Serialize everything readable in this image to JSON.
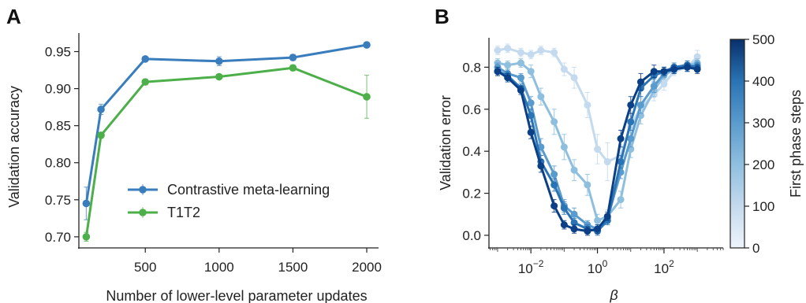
{
  "chart_data": [
    {
      "panel": "A",
      "type": "line",
      "xlabel": "Number of lower-level parameter updates",
      "ylabel": "Validation accuracy",
      "xticks": [
        500,
        1000,
        1500,
        2000
      ],
      "yticks": [
        "0.70",
        "0.75",
        "0.80",
        "0.85",
        "0.90",
        "0.95"
      ],
      "xlim": [
        50,
        2080
      ],
      "ylim": [
        0.685,
        0.975
      ],
      "legend": "center-right",
      "series": [
        {
          "name": "Contrastive meta-learning",
          "color": "#3a7dbd",
          "x": [
            100,
            200,
            500,
            1000,
            1500,
            2000
          ],
          "y": [
            0.745,
            0.872,
            0.94,
            0.937,
            0.942,
            0.959
          ],
          "err": [
            0.022,
            0.007,
            0.003,
            0.006,
            0.004,
            0.003
          ]
        },
        {
          "name": "T1T2",
          "color": "#4daf4a",
          "x": [
            100,
            200,
            500,
            1000,
            1500,
            2000
          ],
          "y": [
            0.7,
            0.837,
            0.909,
            0.916,
            0.928,
            0.889
          ],
          "err": [
            0.006,
            0.004,
            0.004,
            0.003,
            0.004,
            0.029
          ]
        }
      ]
    },
    {
      "panel": "B",
      "type": "line",
      "xlabel": "β",
      "ylabel": "Validation error",
      "xscale": "log",
      "xticks": [
        {
          "base": "10",
          "exp": "−2",
          "value": 0.01
        },
        {
          "base": "10",
          "exp": "0",
          "value": 1
        },
        {
          "base": "10",
          "exp": "2",
          "value": 100
        }
      ],
      "yticks": [
        "0.0",
        "0.2",
        "0.4",
        "0.6",
        "0.8"
      ],
      "xlim": [
        0.00055,
        6000
      ],
      "ylim": [
        -0.06,
        0.94
      ],
      "beta": [
        0.001,
        0.002,
        0.005,
        0.01,
        0.02,
        0.05,
        0.1,
        0.2,
        0.5,
        1,
        2,
        5,
        10,
        20,
        50,
        100,
        200,
        500,
        1000
      ],
      "colorbar": {
        "label": "First phase steps",
        "ticks": [
          "0",
          "100",
          "200",
          "300",
          "400",
          "500"
        ],
        "min": 0,
        "max": 500
      },
      "series": [
        {
          "name": "100",
          "color": "#c4daee",
          "y": [
            0.88,
            0.89,
            0.87,
            0.86,
            0.88,
            0.87,
            0.79,
            0.75,
            0.62,
            0.41,
            0.35,
            0.38,
            0.52,
            0.61,
            0.67,
            0.72,
            0.78,
            0.8,
            0.85
          ],
          "err": [
            0.02,
            0.02,
            0.02,
            0.02,
            0.02,
            0.02,
            0.03,
            0.05,
            0.06,
            0.07,
            0.09,
            0.05,
            0.05,
            0.04,
            0.03,
            0.03,
            0.02,
            0.02,
            0.03
          ]
        },
        {
          "name": "200",
          "color": "#8fbfdf",
          "y": [
            0.82,
            0.81,
            0.82,
            0.78,
            0.66,
            0.54,
            0.42,
            0.31,
            0.24,
            0.07,
            0.09,
            0.17,
            0.41,
            0.57,
            0.69,
            0.76,
            0.79,
            0.81,
            0.82
          ],
          "err": [
            0.02,
            0.02,
            0.02,
            0.03,
            0.04,
            0.06,
            0.06,
            0.05,
            0.05,
            0.03,
            0.03,
            0.04,
            0.04,
            0.04,
            0.03,
            0.02,
            0.02,
            0.02,
            0.02
          ]
        },
        {
          "name": "300",
          "color": "#5a9bcd",
          "y": [
            0.8,
            0.77,
            0.75,
            0.63,
            0.42,
            0.29,
            0.14,
            0.1,
            0.05,
            0.03,
            0.08,
            0.3,
            0.46,
            0.62,
            0.71,
            0.77,
            0.79,
            0.8,
            0.81
          ],
          "err": [
            0.02,
            0.02,
            0.02,
            0.03,
            0.04,
            0.04,
            0.03,
            0.03,
            0.02,
            0.02,
            0.02,
            0.03,
            0.04,
            0.04,
            0.03,
            0.02,
            0.02,
            0.02,
            0.02
          ]
        },
        {
          "name": "400",
          "color": "#2a73b4",
          "y": [
            0.78,
            0.76,
            0.7,
            0.57,
            0.35,
            0.24,
            0.13,
            0.06,
            0.03,
            0.02,
            0.07,
            0.35,
            0.54,
            0.7,
            0.76,
            0.78,
            0.8,
            0.81,
            0.8
          ],
          "err": [
            0.02,
            0.02,
            0.02,
            0.03,
            0.03,
            0.03,
            0.03,
            0.02,
            0.02,
            0.02,
            0.02,
            0.03,
            0.04,
            0.04,
            0.03,
            0.02,
            0.02,
            0.02,
            0.02
          ]
        },
        {
          "name": "500",
          "color": "#0b3f86",
          "y": [
            0.78,
            0.75,
            0.69,
            0.49,
            0.33,
            0.14,
            0.05,
            0.03,
            0.02,
            0.03,
            0.09,
            0.46,
            0.62,
            0.73,
            0.78,
            0.78,
            0.79,
            0.8,
            0.79
          ],
          "err": [
            0.02,
            0.02,
            0.02,
            0.03,
            0.03,
            0.03,
            0.02,
            0.02,
            0.02,
            0.02,
            0.02,
            0.04,
            0.04,
            0.04,
            0.03,
            0.02,
            0.02,
            0.02,
            0.02
          ]
        }
      ]
    }
  ]
}
